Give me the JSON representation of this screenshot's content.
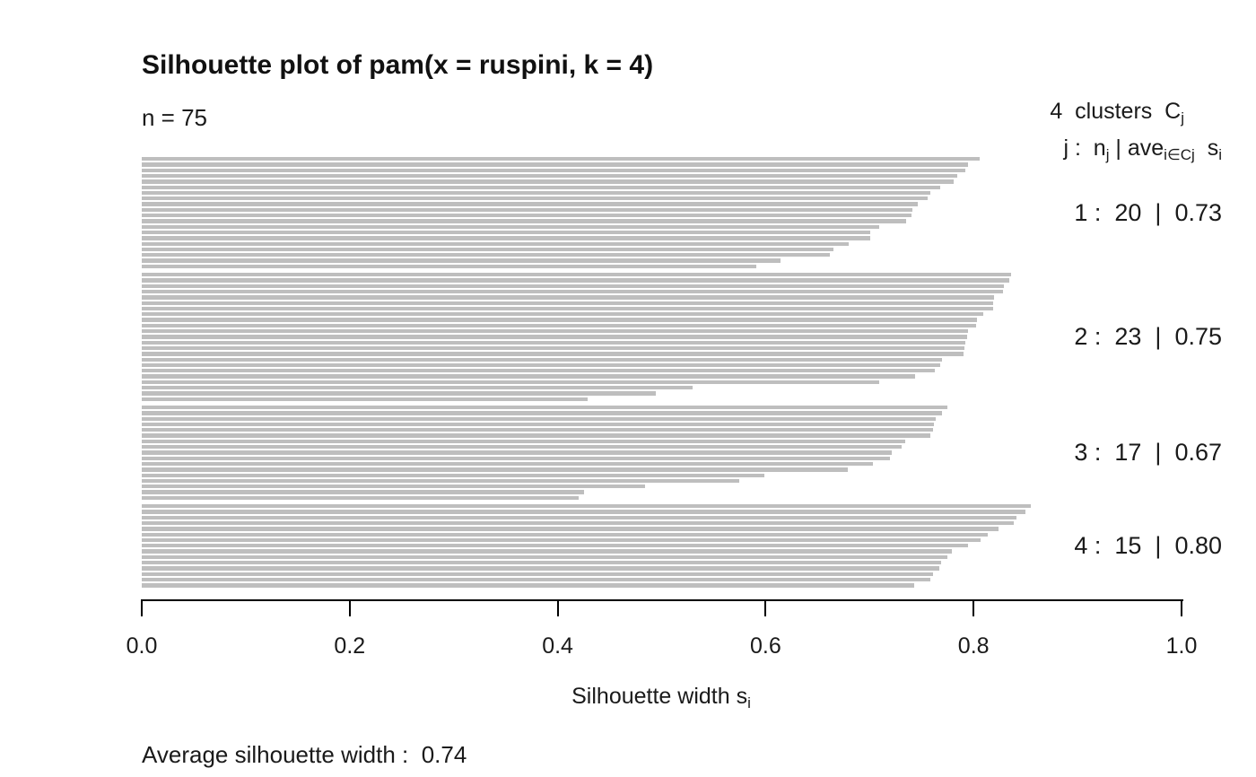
{
  "title": "Silhouette plot of pam(x = ruspini, k = 4)",
  "n_label": "n = 75",
  "legend": {
    "line1_main": "4  clusters  C",
    "line1_sub": "j",
    "line2_p0": "j :  n",
    "line2_s0": "j",
    "line2_p1": " | ave",
    "line2_s1": "i∈Cj",
    "line2_p2": "  s",
    "line2_s2": "i"
  },
  "clusters": [
    {
      "label": "1 :  20  |  0.73"
    },
    {
      "label": "2 :  23  |  0.75"
    },
    {
      "label": "3 :  17  |  0.67"
    },
    {
      "label": "4 :  15  |  0.80"
    }
  ],
  "x_axis": {
    "tick_labels": [
      "0.0",
      "0.2",
      "0.4",
      "0.6",
      "0.8",
      "1.0"
    ],
    "label_main": "Silhouette width s",
    "label_sub": "i"
  },
  "footer": "Average silhouette width :  0.74",
  "colors": {
    "bar": "#bebebe",
    "text": "#1a1a1a",
    "axis": "#000000"
  },
  "chart_data": {
    "type": "bar",
    "orientation": "horizontal",
    "title": "Silhouette plot of pam(x = ruspini, k = 4)",
    "xlabel": "Silhouette width s_i",
    "xlim": [
      0.0,
      1.0
    ],
    "x_ticks": [
      0.0,
      0.2,
      0.4,
      0.6,
      0.8,
      1.0
    ],
    "grid": false,
    "n_total": 75,
    "k": 4,
    "average_silhouette_width": 0.74,
    "bar_color": "#bebebe",
    "clusters": [
      {
        "j": 1,
        "n_j": 20,
        "ave_s": 0.73,
        "values": [
          0.806,
          0.795,
          0.792,
          0.784,
          0.781,
          0.768,
          0.758,
          0.756,
          0.746,
          0.741,
          0.74,
          0.735,
          0.709,
          0.701,
          0.701,
          0.68,
          0.665,
          0.662,
          0.614,
          0.591
        ]
      },
      {
        "j": 2,
        "n_j": 23,
        "ave_s": 0.75,
        "values": [
          0.836,
          0.834,
          0.829,
          0.828,
          0.82,
          0.819,
          0.819,
          0.809,
          0.803,
          0.802,
          0.795,
          0.794,
          0.792,
          0.791,
          0.79,
          0.77,
          0.768,
          0.763,
          0.744,
          0.709,
          0.53,
          0.494,
          0.429
        ]
      },
      {
        "j": 3,
        "n_j": 17,
        "ave_s": 0.67,
        "values": [
          0.775,
          0.77,
          0.764,
          0.762,
          0.761,
          0.758,
          0.734,
          0.731,
          0.721,
          0.72,
          0.703,
          0.679,
          0.599,
          0.575,
          0.484,
          0.425,
          0.42
        ]
      },
      {
        "j": 4,
        "n_j": 15,
        "ave_s": 0.8,
        "values": [
          0.855,
          0.85,
          0.841,
          0.839,
          0.824,
          0.814,
          0.807,
          0.795,
          0.779,
          0.775,
          0.769,
          0.767,
          0.761,
          0.758,
          0.743
        ]
      }
    ]
  }
}
